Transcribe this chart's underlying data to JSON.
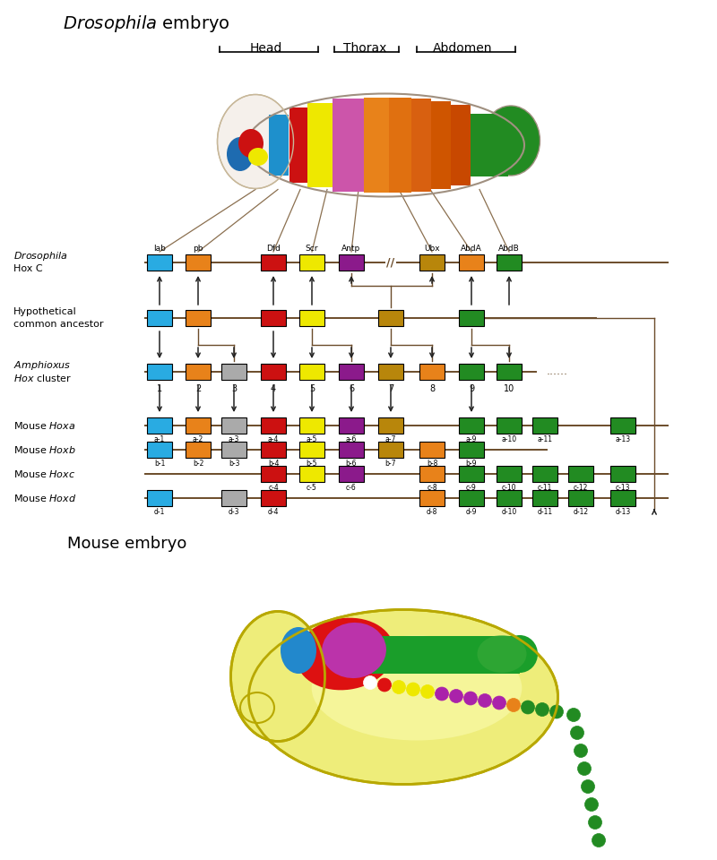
{
  "bg_color": "#ffffff",
  "title_drosophila": "Drosophila embryo",
  "title_mouse": "Mouse embryo",
  "drosophila_genes": [
    {
      "label": "lab",
      "color": "#29ABE2",
      "col": 1
    },
    {
      "label": "pb",
      "color": "#E8821A",
      "col": 2
    },
    {
      "label": "Dfd",
      "color": "#CC1111",
      "col": 4
    },
    {
      "label": "Scr",
      "color": "#EEE800",
      "col": 5
    },
    {
      "label": "Antp",
      "color": "#8B1A8B",
      "col": 6
    },
    {
      "label": "Ubx",
      "color": "#B8860B",
      "col": 8
    },
    {
      "label": "AbdA",
      "color": "#E8821A",
      "col": 9
    },
    {
      "label": "AbdB",
      "color": "#228B22",
      "col": 10
    }
  ],
  "ancestor_genes": [
    {
      "color": "#29ABE2",
      "col": 1
    },
    {
      "color": "#E8821A",
      "col": 2
    },
    {
      "color": "#CC1111",
      "col": 4
    },
    {
      "color": "#EEE800",
      "col": 5
    },
    {
      "color": "#B8860B",
      "col": 7
    },
    {
      "color": "#228B22",
      "col": 9
    }
  ],
  "amphioxus_genes": [
    {
      "color": "#29ABE2",
      "col": 1
    },
    {
      "color": "#E8821A",
      "col": 2
    },
    {
      "color": "#AAAAAA",
      "col": 3
    },
    {
      "color": "#CC1111",
      "col": 4
    },
    {
      "color": "#EEE800",
      "col": 5
    },
    {
      "color": "#8B1A8B",
      "col": 6
    },
    {
      "color": "#B8860B",
      "col": 7
    },
    {
      "color": "#E8821A",
      "col": 8
    },
    {
      "color": "#228B22",
      "col": 9
    },
    {
      "color": "#228B22",
      "col": 10
    }
  ],
  "hoxa_genes": [
    {
      "color": "#29ABE2",
      "label": "a-1",
      "col": 1
    },
    {
      "color": "#E8821A",
      "label": "a-2",
      "col": 2
    },
    {
      "color": "#AAAAAA",
      "label": "a-3",
      "col": 3
    },
    {
      "color": "#CC1111",
      "label": "a-4",
      "col": 4
    },
    {
      "color": "#EEE800",
      "label": "a-5",
      "col": 5
    },
    {
      "color": "#8B1A8B",
      "label": "a-6",
      "col": 6
    },
    {
      "color": "#B8860B",
      "label": "a-7",
      "col": 7
    },
    {
      "color": "#228B22",
      "label": "a-9",
      "col": 9
    },
    {
      "color": "#228B22",
      "label": "a-10",
      "col": 10
    },
    {
      "color": "#228B22",
      "label": "a-11",
      "col": 11
    },
    {
      "color": "#228B22",
      "label": "a-13",
      "col": 13
    }
  ],
  "hoxb_genes": [
    {
      "color": "#29ABE2",
      "label": "b-1",
      "col": 1
    },
    {
      "color": "#E8821A",
      "label": "b-2",
      "col": 2
    },
    {
      "color": "#AAAAAA",
      "label": "b-3",
      "col": 3
    },
    {
      "color": "#CC1111",
      "label": "b-4",
      "col": 4
    },
    {
      "color": "#EEE800",
      "label": "b-5",
      "col": 5
    },
    {
      "color": "#8B1A8B",
      "label": "b-6",
      "col": 6
    },
    {
      "color": "#B8860B",
      "label": "b-7",
      "col": 7
    },
    {
      "color": "#E8821A",
      "label": "b-8",
      "col": 8
    },
    {
      "color": "#228B22",
      "label": "b-9",
      "col": 9
    }
  ],
  "hoxc_genes": [
    {
      "color": "#CC1111",
      "label": "c-4",
      "col": 4
    },
    {
      "color": "#EEE800",
      "label": "c-5",
      "col": 5
    },
    {
      "color": "#8B1A8B",
      "label": "c-6",
      "col": 6
    },
    {
      "color": "#E8821A",
      "label": "c-8",
      "col": 8
    },
    {
      "color": "#228B22",
      "label": "c-9",
      "col": 9
    },
    {
      "color": "#228B22",
      "label": "c-10",
      "col": 10
    },
    {
      "color": "#228B22",
      "label": "c-11",
      "col": 11
    },
    {
      "color": "#228B22",
      "label": "c-12",
      "col": 12
    },
    {
      "color": "#228B22",
      "label": "c-13",
      "col": 13
    }
  ],
  "hoxd_genes": [
    {
      "color": "#29ABE2",
      "label": "d-1",
      "col": 1
    },
    {
      "color": "#AAAAAA",
      "label": "d-3",
      "col": 3
    },
    {
      "color": "#CC1111",
      "label": "d-4",
      "col": 4
    },
    {
      "color": "#E8821A",
      "label": "d-8",
      "col": 8
    },
    {
      "color": "#228B22",
      "label": "d-9",
      "col": 9
    },
    {
      "color": "#228B22",
      "label": "d-10",
      "col": 10
    },
    {
      "color": "#228B22",
      "label": "d-11",
      "col": 11
    },
    {
      "color": "#228B22",
      "label": "d-12",
      "col": 12
    },
    {
      "color": "#228B22",
      "label": "d-13",
      "col": 13
    }
  ],
  "col_positions": {
    "1": 178,
    "2": 221,
    "3": 261,
    "4": 305,
    "5": 348,
    "6": 392,
    "7": 436,
    "8": 482,
    "9": 526,
    "10": 568,
    "11": 608,
    "12": 648,
    "13": 695
  },
  "line_color": "#6B4C2A",
  "arrow_color": "#222222"
}
